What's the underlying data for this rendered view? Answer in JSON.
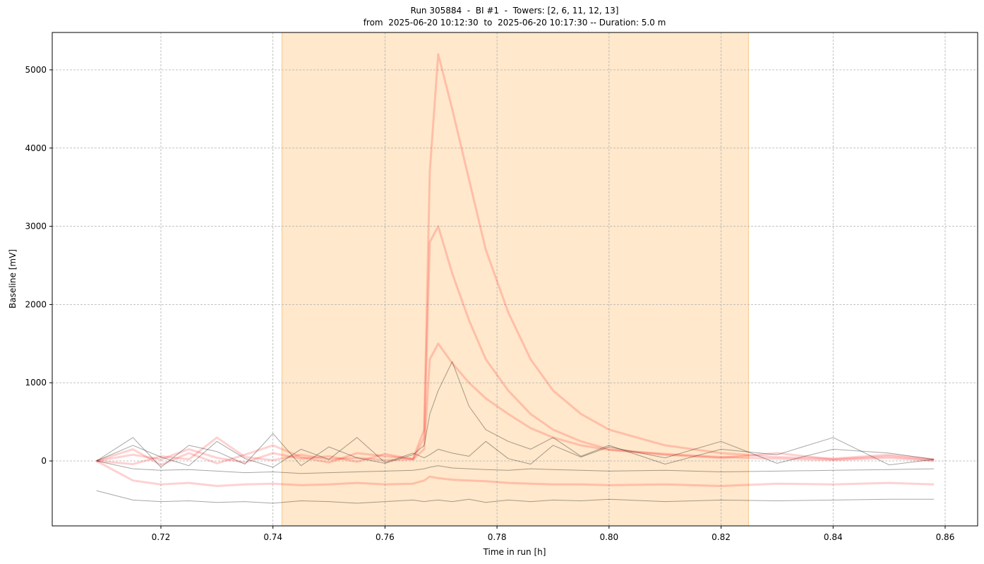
{
  "chart_data": {
    "type": "line",
    "title": "Run 305884  -  BI #1  -  Towers: [2, 6, 11, 12, 13]",
    "subtitle": "from  2025-06-20 10:12:30  to  2025-06-20 10:17:30 -- Duration: 5.0 m",
    "x_label": "Time in run [h]",
    "y_label": "Baseline [mV]",
    "xlim": [
      0.7006,
      0.8658
    ],
    "ylim": [
      -830,
      5478
    ],
    "xticks": [
      0.72,
      0.74,
      0.76,
      0.78,
      {
        "value": 0.8,
        "label": "0.80"
      },
      0.82,
      0.84,
      0.86
    ],
    "yticks": [
      0,
      1000,
      2000,
      3000,
      4000,
      5000
    ],
    "grid": true,
    "span": [
      0.7416,
      0.8249
    ],
    "span_color": "#ffe8cc",
    "x": [
      0.7085,
      0.715,
      0.72,
      0.725,
      0.73,
      0.735,
      0.74,
      0.745,
      0.75,
      0.755,
      0.76,
      0.765,
      0.767,
      0.768,
      0.7695,
      0.772,
      0.775,
      0.778,
      0.782,
      0.786,
      0.79,
      0.795,
      0.8,
      0.81,
      0.82,
      0.83,
      0.84,
      0.85,
      0.858
    ],
    "series": [
      {
        "color": "#ff0000",
        "opacity": 0.18,
        "width": 3,
        "values": [
          0,
          150,
          -50,
          100,
          -30,
          80,
          200,
          50,
          -20,
          100,
          60,
          30,
          400,
          3700,
          5200,
          4500,
          3600,
          2700,
          1900,
          1300,
          900,
          600,
          400,
          200,
          100,
          50,
          30,
          80,
          20
        ]
      },
      {
        "color": "#ff0000",
        "opacity": 0.18,
        "width": 3,
        "values": [
          0,
          80,
          20,
          150,
          40,
          -20,
          100,
          30,
          60,
          -10,
          90,
          20,
          300,
          2800,
          3000,
          2400,
          1800,
          1300,
          900,
          600,
          400,
          250,
          150,
          80,
          40,
          100,
          20,
          60,
          10
        ]
      },
      {
        "color": "#ff0000",
        "opacity": 0.18,
        "width": 3,
        "values": [
          0,
          -40,
          60,
          20,
          300,
          50,
          10,
          80,
          20,
          40,
          10,
          20,
          150,
          1300,
          1500,
          1250,
          1000,
          800,
          600,
          420,
          300,
          200,
          140,
          90,
          50,
          30,
          10,
          40,
          0
        ]
      },
      {
        "color": "#ff0000",
        "opacity": 0.18,
        "width": 3,
        "values": [
          0,
          -250,
          -300,
          -280,
          -320,
          -300,
          -290,
          -310,
          -300,
          -280,
          -300,
          -290,
          -250,
          -200,
          -220,
          -240,
          -250,
          -260,
          -280,
          -290,
          -300,
          -300,
          -310,
          -300,
          -320,
          -290,
          -300,
          -280,
          -300
        ]
      },
      {
        "color": "#000000",
        "opacity": 0.35,
        "width": 1,
        "values": [
          0,
          300,
          -80,
          200,
          120,
          -40,
          350,
          -60,
          180,
          40,
          -30,
          80,
          200,
          600,
          900,
          1270,
          700,
          400,
          250,
          150,
          300,
          60,
          200,
          -40,
          150,
          80,
          300,
          -50,
          20
        ]
      },
      {
        "color": "#000000",
        "opacity": 0.35,
        "width": 1,
        "values": [
          0,
          200,
          50,
          -60,
          250,
          30,
          -80,
          150,
          20,
          300,
          -20,
          100,
          40,
          80,
          150,
          100,
          60,
          250,
          30,
          -40,
          200,
          50,
          180,
          40,
          250,
          -30,
          150,
          100,
          20
        ]
      },
      {
        "color": "#000000",
        "opacity": 0.35,
        "width": 1,
        "values": [
          -380,
          -500,
          -520,
          -510,
          -530,
          -520,
          -540,
          -510,
          -520,
          -540,
          -520,
          -500,
          -520,
          -510,
          -500,
          -520,
          -490,
          -530,
          -500,
          -520,
          -500,
          -510,
          -490,
          -520,
          -500,
          -510,
          -500,
          -490,
          -490
        ]
      },
      {
        "color": "#000000",
        "opacity": 0.35,
        "width": 1,
        "values": [
          0,
          -100,
          -120,
          -110,
          -130,
          -150,
          -140,
          -160,
          -150,
          -140,
          -130,
          -120,
          -100,
          -80,
          -60,
          -90,
          -100,
          -110,
          -120,
          -100,
          -110,
          -120,
          -130,
          -120,
          -140,
          -130,
          -120,
          -110,
          -100
        ]
      }
    ]
  }
}
